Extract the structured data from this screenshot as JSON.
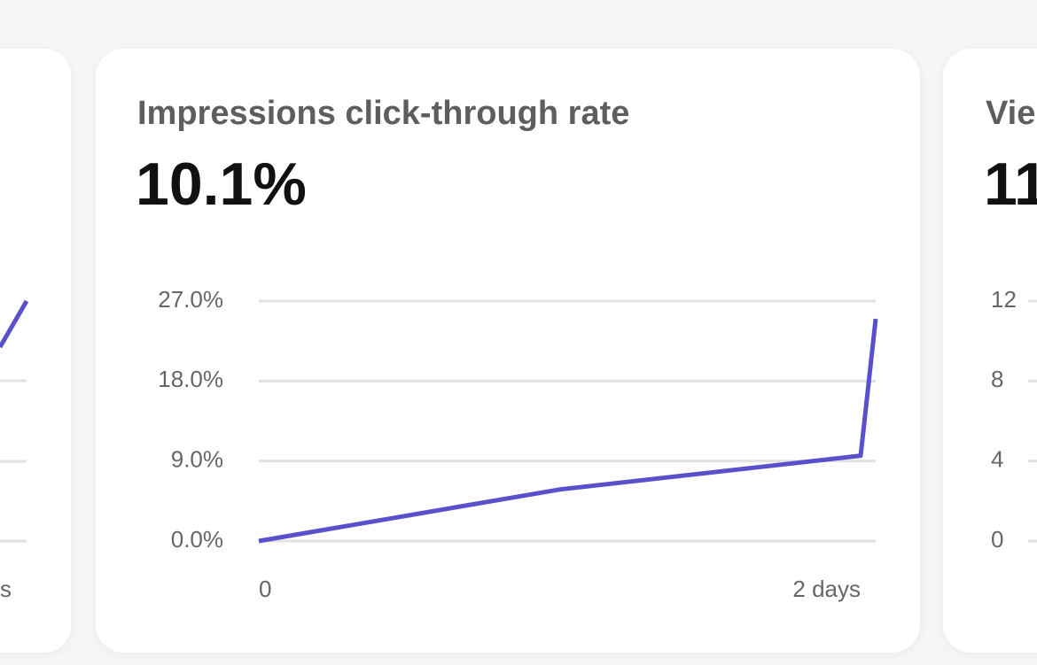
{
  "chart_data": [
    {
      "type": "line",
      "title": "Impressions click-through rate",
      "value": "10.1%",
      "x": [
        0,
        1,
        2,
        2.05
      ],
      "xlim": [
        0,
        2.05
      ],
      "xticks": [
        {
          "value": 0,
          "label": "0"
        },
        {
          "value": 2,
          "label": "2 days"
        }
      ],
      "series": [
        {
          "color": "#5a50cc",
          "values": [
            0,
            5.8,
            9.6,
            25
          ]
        }
      ],
      "ylim": [
        0,
        27
      ],
      "yticks": [
        {
          "value": 0,
          "label": "0.0%"
        },
        {
          "value": 9,
          "label": "9.0%"
        },
        {
          "value": 18,
          "label": "18.0%"
        },
        {
          "value": 27,
          "label": "27.0%"
        }
      ],
      "grid": true
    },
    {
      "type": "line",
      "title": "Vie",
      "value": "11",
      "ylim": [
        0,
        12
      ],
      "yticks": [
        0,
        4,
        8,
        12
      ],
      "grid": true
    }
  ],
  "left_card": {
    "x_tick_label": "s"
  }
}
